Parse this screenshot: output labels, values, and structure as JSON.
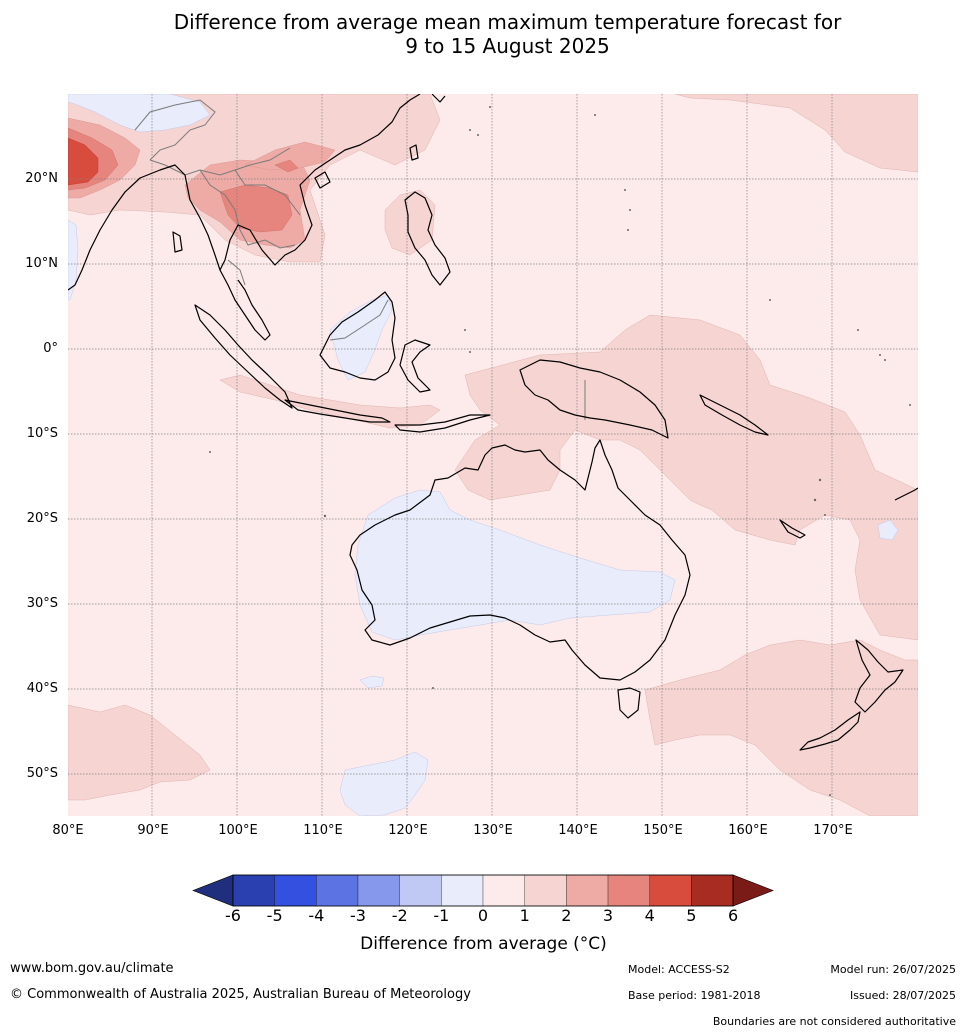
{
  "title": {
    "line1": "Difference from average mean maximum temperature forecast for",
    "line2": "9 to 15 August 2025"
  },
  "axes": {
    "lat_labels": [
      "20°N",
      "10°N",
      "0°",
      "10°S",
      "20°S",
      "30°S",
      "40°S",
      "50°S"
    ],
    "lon_labels": [
      "80°E",
      "90°E",
      "100°E",
      "110°E",
      "120°E",
      "130°E",
      "140°E",
      "150°E",
      "160°E",
      "170°E"
    ],
    "lat_values": [
      20,
      10,
      0,
      -10,
      -20,
      -30,
      -40,
      -50
    ],
    "lon_values": [
      80,
      90,
      100,
      110,
      120,
      130,
      140,
      150,
      160,
      170
    ],
    "lat_range": [
      -55,
      30
    ],
    "lon_range": [
      80,
      180
    ]
  },
  "legend": {
    "title": "Difference from average (°C)",
    "tick_labels": [
      "-6",
      "-5",
      "-4",
      "-3",
      "-2",
      "-1",
      "0",
      "1",
      "2",
      "3",
      "4",
      "5",
      "6"
    ],
    "colors": [
      "#1f2f7d",
      "#2a3fb0",
      "#3350e0",
      "#5c73e4",
      "#8698ec",
      "#c0c8f4",
      "#e8ecfb",
      "#fcebea",
      "#f5d4d2",
      "#eeaba6",
      "#e6857d",
      "#d84c3e",
      "#a82c22",
      "#7a1b18"
    ],
    "colors_note_range": "below -6, -6 to -5, -5 to -4, -4 to -3, -3 to -2, -2 to -1, -1 to 0, 0 to 1, 1 to 2, 2 to 3, 3 to 4, 4 to 5, 5 to 6, above 6"
  },
  "footer": {
    "website": "www.bom.gov.au/climate",
    "copyright": "© Commonwealth of Australia 2025, Australian Bureau of Meteorology",
    "model": "Model: ACCESS-S2",
    "base_period": "Base period: 1981-2018",
    "model_run": "Model run: 26/07/2025",
    "issued": "Issued: 28/07/2025",
    "disclaimer": "Boundaries are not considered authoritative"
  }
}
